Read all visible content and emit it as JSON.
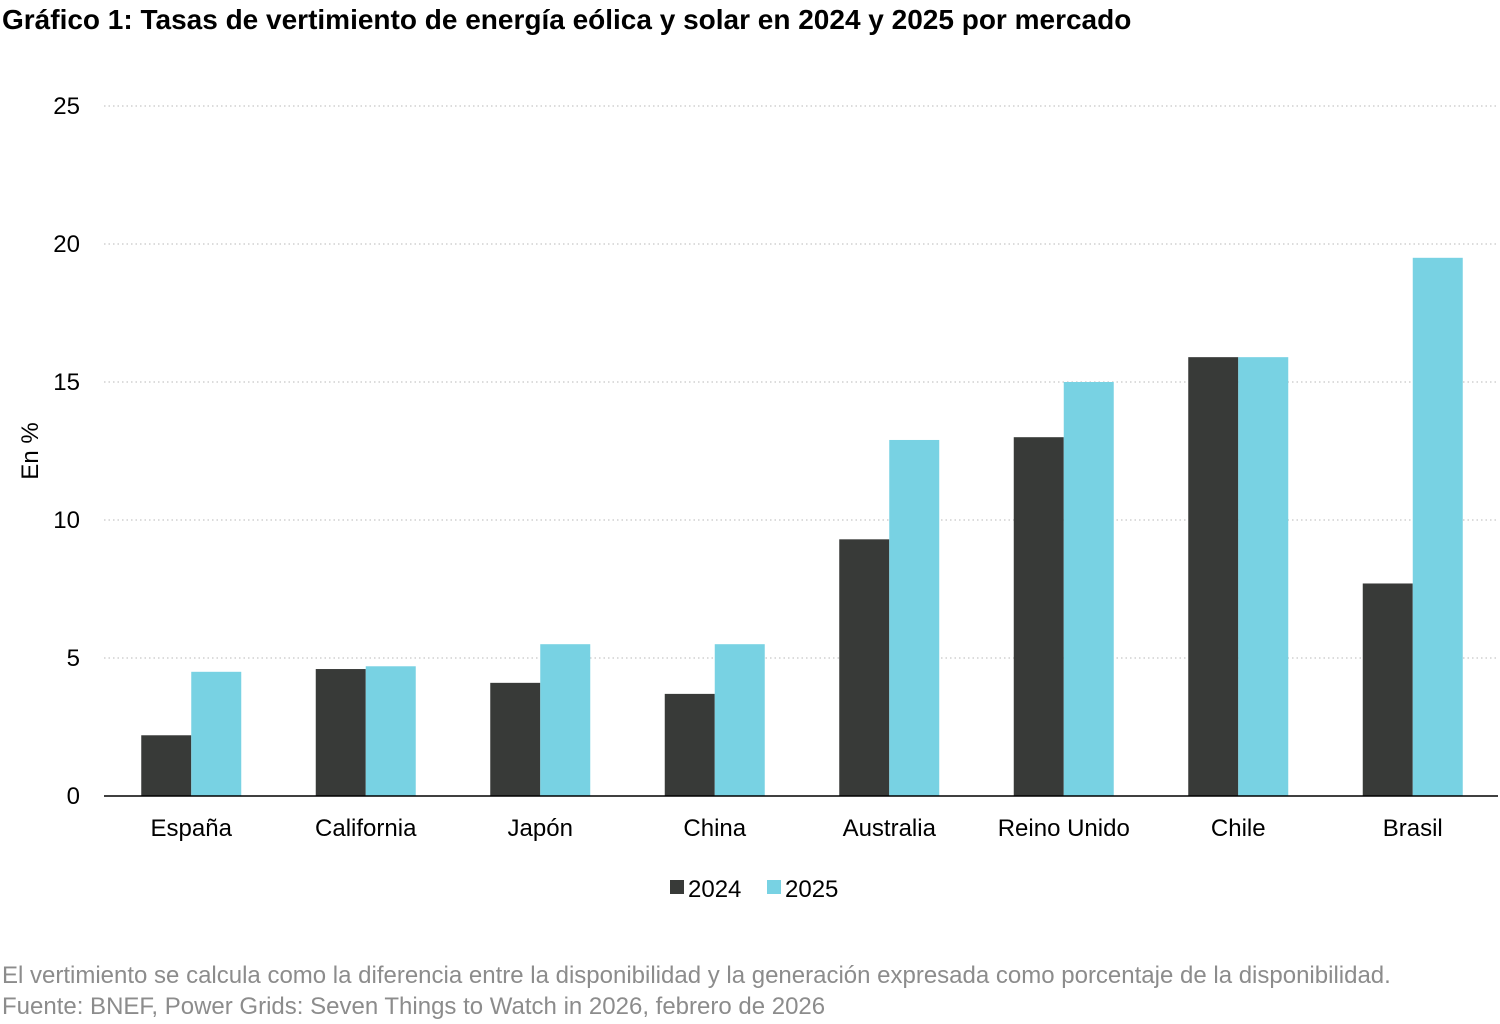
{
  "chart_data": {
    "type": "bar",
    "title": "Gráfico 1: Tasas de vertimiento de energía eólica y solar en 2024 y 2025 por mercado",
    "ylabel": "En %",
    "xlabel": "",
    "ylim": [
      0,
      25
    ],
    "yticks": [
      "0",
      "5",
      "10",
      "15",
      "20",
      "25"
    ],
    "grid": true,
    "legend_position": "bottom",
    "categories": [
      "España",
      "California",
      "Japón",
      "China",
      "Australia",
      "Reino Unido",
      "Chile",
      "Brasil"
    ],
    "series": [
      {
        "name": "2024",
        "color": "#383a38",
        "values": [
          2.2,
          4.6,
          4.1,
          3.7,
          9.3,
          13.0,
          15.9,
          7.7
        ]
      },
      {
        "name": "2025",
        "color": "#78d2e3",
        "values": [
          4.5,
          4.7,
          5.5,
          5.5,
          12.9,
          15.0,
          15.9,
          19.5
        ]
      }
    ],
    "note": "El vertimiento se calcula como la diferencia entre la disponibilidad y la generación expresada como porcentaje de la disponibilidad. Fuente: BNEF, Power Grids: Seven Things to Watch in 2026, febrero de 2026"
  }
}
